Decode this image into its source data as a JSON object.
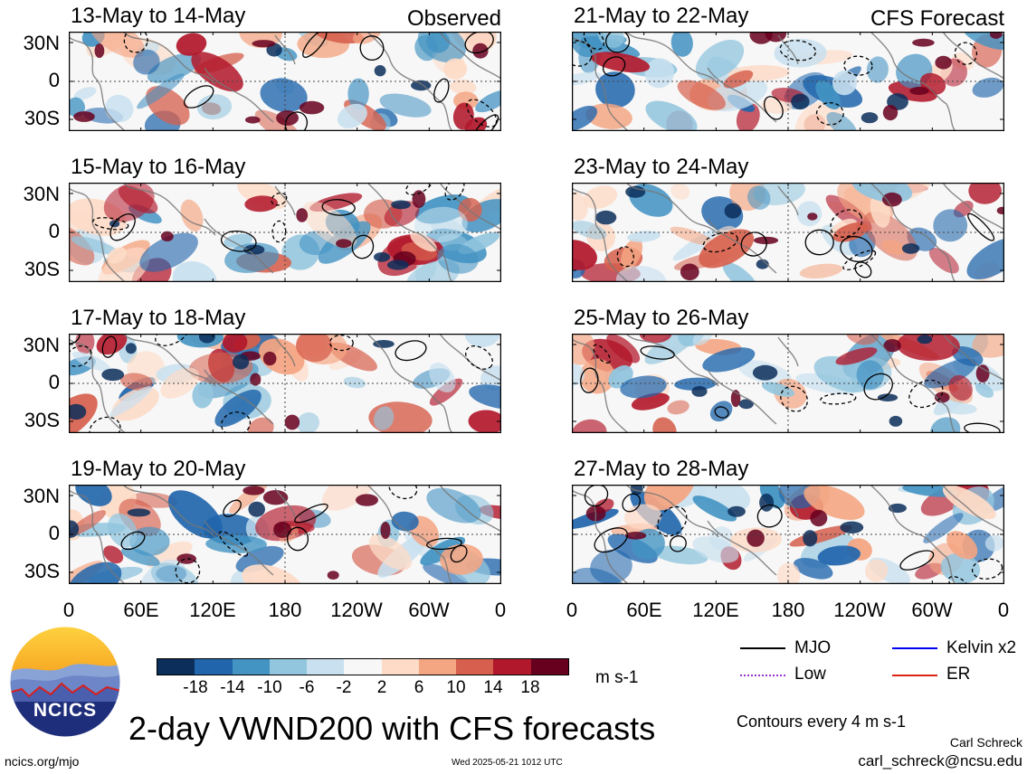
{
  "panels": [
    {
      "title": "13-May to 14-May",
      "tag": "Observed",
      "seed": 3
    },
    {
      "title": "21-May to 22-May",
      "tag": "CFS Forecast",
      "seed": 11
    },
    {
      "title": "15-May to 16-May",
      "tag": "",
      "seed": 5
    },
    {
      "title": "23-May to 24-May",
      "tag": "",
      "seed": 13
    },
    {
      "title": "17-May to 18-May",
      "tag": "",
      "seed": 7
    },
    {
      "title": "25-May to 26-May",
      "tag": "",
      "seed": 17
    },
    {
      "title": "19-May to 20-May",
      "tag": "",
      "seed": 9
    },
    {
      "title": "27-May to 28-May",
      "tag": "",
      "seed": 19
    }
  ],
  "lat_labels": [
    "30N",
    "0",
    "30S"
  ],
  "lon_labels": [
    "0",
    "60E",
    "120E",
    "180",
    "120W",
    "60W",
    "0"
  ],
  "colorbar": {
    "ticks": [
      "-18",
      "-14",
      "-10",
      "-6",
      "-2",
      "2",
      "6",
      "10",
      "14",
      "18"
    ],
    "colors": [
      "#0b2e5a",
      "#2166ac",
      "#4393c3",
      "#92c5de",
      "#c8e0ef",
      "#f7f7f7",
      "#fddbc7",
      "#f4a582",
      "#d6604d",
      "#b2182b",
      "#67001f"
    ],
    "units": "m s-1"
  },
  "legend": {
    "items": [
      {
        "label": "MJO",
        "color": "#000000",
        "style": "solid"
      },
      {
        "label": "Kelvin x2",
        "color": "#0000ee",
        "style": "solid"
      },
      {
        "label": "Low",
        "color": "#9933cc",
        "style": "dotted"
      },
      {
        "label": "ER",
        "color": "#dd2211",
        "style": "solid"
      }
    ],
    "contours_note": "Contours every 4 m s-1"
  },
  "logo_text": "NCICS",
  "main_title": "2-day VWND200 with CFS forecasts",
  "author": "Carl Schreck",
  "email": "carl_schreck@ncsu.edu",
  "site": "ncics.org/mjo",
  "timestamp": "Wed 2025-05-21 1012 UTC"
}
